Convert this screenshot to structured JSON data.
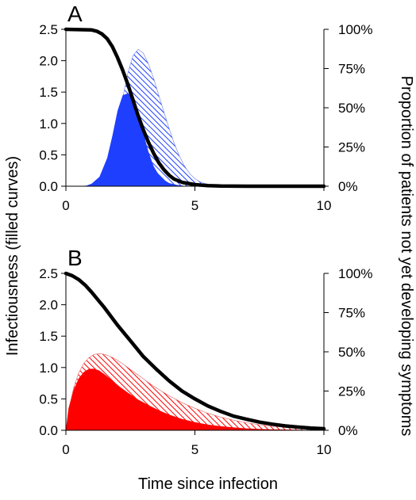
{
  "chart_data": {
    "x_title": "Time since infection",
    "left_axis_title": "Infectiousness (filled curves)",
    "right_axis_title": "Proportion of patients not yet developing symptoms",
    "x_ticks": [
      "0",
      "5",
      "10"
    ],
    "left_ticks": [
      "0.0",
      "0.5",
      "1.0",
      "1.5",
      "2.0",
      "2.5"
    ],
    "right_ticks": [
      "0%",
      "25%",
      "50%",
      "75%",
      "100%"
    ],
    "xlim": [
      0,
      10
    ],
    "ylim_left": [
      0,
      2.5
    ],
    "ylim_right": [
      0,
      100
    ],
    "panels": [
      {
        "label": "A",
        "type": "area+line",
        "solid_fill_color": "#1f3fff",
        "hatch_color": "#1f3fff",
        "solid_area": {
          "x": [
            0.5,
            0.8,
            1.0,
            1.3,
            1.6,
            1.8,
            2.0,
            2.2,
            2.4,
            2.6,
            2.8,
            3.0,
            3.2,
            3.4,
            3.6,
            3.8,
            4.0,
            4.3,
            4.6,
            4.8
          ],
          "y": [
            0.0,
            0.01,
            0.04,
            0.15,
            0.45,
            0.8,
            1.2,
            1.45,
            1.48,
            1.38,
            1.15,
            0.85,
            0.55,
            0.32,
            0.18,
            0.1,
            0.05,
            0.02,
            0.005,
            0.0
          ]
        },
        "hatched_area": {
          "x": [
            0.8,
            1.2,
            1.5,
            1.8,
            2.0,
            2.2,
            2.4,
            2.6,
            2.8,
            3.0,
            3.2,
            3.4,
            3.6,
            3.8,
            4.0,
            4.2,
            4.4,
            4.6,
            4.8,
            5.0,
            5.2,
            5.5,
            5.8,
            6.2
          ],
          "y": [
            0.0,
            0.05,
            0.2,
            0.55,
            0.95,
            1.4,
            1.8,
            2.08,
            2.18,
            2.12,
            1.95,
            1.72,
            1.45,
            1.18,
            0.92,
            0.68,
            0.48,
            0.32,
            0.2,
            0.12,
            0.07,
            0.03,
            0.01,
            0.0
          ]
        },
        "proportion_line": {
          "x": [
            0,
            1.0,
            1.2,
            1.4,
            1.6,
            1.8,
            2.0,
            2.2,
            2.4,
            2.6,
            2.8,
            3.0,
            3.2,
            3.4,
            3.6,
            3.8,
            4.0,
            4.2,
            4.5,
            5.0,
            5.5,
            6.0,
            7.0,
            10
          ],
          "y": [
            100,
            99.6,
            98.8,
            97,
            94,
            89,
            82,
            74,
            65,
            55,
            45,
            36,
            28,
            21,
            15,
            10.5,
            7,
            4.5,
            2.5,
            1,
            0.4,
            0.1,
            0,
            0
          ]
        }
      },
      {
        "label": "B",
        "type": "area+line",
        "solid_fill_color": "#ff0000",
        "hatch_color": "#ff0000",
        "solid_area": {
          "x": [
            0,
            0.1,
            0.3,
            0.5,
            0.7,
            0.9,
            1.1,
            1.3,
            1.5,
            1.8,
            2.1,
            2.4,
            2.8,
            3.2,
            3.6,
            4.0,
            4.5,
            5.0,
            5.5,
            6.0,
            6.5,
            7.0,
            7.5,
            8.0,
            9.0,
            10.0
          ],
          "y": [
            0,
            0.35,
            0.65,
            0.83,
            0.93,
            0.98,
            0.98,
            0.95,
            0.89,
            0.79,
            0.69,
            0.6,
            0.49,
            0.4,
            0.32,
            0.25,
            0.18,
            0.13,
            0.09,
            0.065,
            0.045,
            0.03,
            0.02,
            0.014,
            0.007,
            0.003
          ]
        },
        "hatched_area": {
          "x": [
            0,
            0.1,
            0.3,
            0.5,
            0.7,
            0.9,
            1.1,
            1.3,
            1.5,
            1.7,
            1.9,
            2.2,
            2.5,
            2.8,
            3.2,
            3.6,
            4.0,
            4.5,
            5.0,
            5.5,
            6.0,
            6.5,
            7.0,
            7.5,
            8.0,
            9.0,
            10.0
          ],
          "y": [
            0,
            0.3,
            0.68,
            0.92,
            1.07,
            1.16,
            1.21,
            1.22,
            1.21,
            1.18,
            1.14,
            1.06,
            0.97,
            0.88,
            0.76,
            0.65,
            0.55,
            0.44,
            0.35,
            0.27,
            0.21,
            0.16,
            0.12,
            0.09,
            0.065,
            0.035,
            0.018
          ]
        },
        "proportion_line": {
          "x": [
            0,
            0.25,
            0.5,
            0.75,
            1.0,
            1.5,
            2.0,
            2.5,
            3.0,
            3.5,
            4.0,
            4.5,
            5.0,
            5.5,
            6.0,
            6.5,
            7.0,
            7.5,
            8.0,
            8.5,
            9.0,
            9.5,
            10
          ],
          "y": [
            100,
            98.5,
            96,
            92.5,
            88,
            78,
            67,
            57,
            47,
            39,
            31.5,
            25,
            20,
            15.5,
            12,
            9,
            7,
            5.2,
            3.9,
            2.8,
            2,
            1.4,
            1
          ]
        }
      }
    ],
    "grid": false,
    "legend": "none"
  }
}
